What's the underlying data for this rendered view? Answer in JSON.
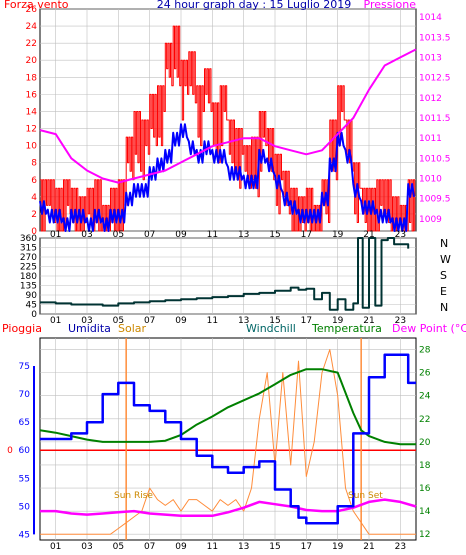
{
  "header": {
    "wind_title": "Forza vento",
    "main_title": "24 hour graph day : 15 Luglio 2019",
    "pressure_title": "Pressione"
  },
  "lower_labels": {
    "rain": "Pioggia",
    "humidity": "Umidita",
    "solar": "Solar",
    "windchill": "Windchill",
    "temperature": "Temperatura",
    "dewpoint": "Dew Point (°C)"
  },
  "direction_letters": [
    "N",
    "W",
    "S",
    "E",
    "N"
  ],
  "annotations": {
    "sunrise": "Sun Rise",
    "sunset": "Sun Set"
  },
  "colors": {
    "wind_gust": "#ff0000",
    "wind_avg": "#0000ff",
    "pressure": "#ff00ff",
    "wind_dir": "#003333",
    "humidity": "#0000ff",
    "solar": "#ff8c3a",
    "temperature": "#008000",
    "dewpoint": "#ff00ff",
    "rain": "#ff0000",
    "grid": "#c0c0c0"
  },
  "chart_data": [
    {
      "type": "line",
      "title": "24 hour graph day : 15 Luglio 2019",
      "xlabel": "",
      "x_ticks": [
        "01",
        "03",
        "05",
        "07",
        "09",
        "11",
        "13",
        "15",
        "17",
        "19",
        "21",
        "23"
      ],
      "x_range": [
        0,
        24
      ],
      "left_axis": {
        "label": "Forza vento",
        "ticks": [
          0,
          2,
          4,
          6,
          8,
          10,
          12,
          14,
          16,
          18,
          20,
          22,
          24,
          26
        ],
        "range": [
          0,
          26
        ]
      },
      "right_axis": {
        "label": "Pressione",
        "ticks": [
          "1009",
          "1009.5",
          "1010",
          "1010.5",
          "1011",
          "1011.5",
          "1012",
          "1012.5",
          "1013",
          "1013.5",
          "1014"
        ],
        "range": [
          1008.7,
          1014.2
        ]
      },
      "series": [
        {
          "name": "Forza vento",
          "axis": "left",
          "x": [
            0,
            0.5,
            1,
            1.5,
            2,
            2.5,
            3,
            3.5,
            4,
            4.5,
            5,
            5.5,
            6,
            6.5,
            7,
            7.5,
            8,
            8.5,
            9,
            9.5,
            10,
            10.5,
            11,
            11.5,
            12,
            12.5,
            13,
            13.5,
            14,
            14.5,
            15,
            15.5,
            16,
            16.5,
            17,
            17.5,
            18,
            18.5,
            19,
            19.5,
            20,
            20.5,
            21,
            21.5,
            22,
            22.5,
            23,
            23.5
          ],
          "values": [
            6,
            6,
            5,
            6,
            5,
            4,
            5,
            6,
            3,
            5,
            6,
            11,
            14,
            13,
            16,
            17,
            22,
            24,
            20,
            21,
            17,
            19,
            15,
            17,
            13,
            12,
            10,
            11,
            14,
            12,
            9,
            7,
            5,
            4,
            5,
            3,
            6,
            13,
            17,
            13,
            8,
            5,
            5,
            6,
            6,
            4,
            3,
            6
          ]
        },
        {
          "name": "",
          "axis": "left",
          "x": [
            0,
            0.5,
            1,
            1.5,
            2,
            2.5,
            3,
            3.5,
            4,
            4.5,
            5,
            5.5,
            6,
            6.5,
            7,
            7.5,
            8,
            8.5,
            9,
            9.5,
            10,
            10.5,
            11,
            11.5,
            12,
            12.5,
            13,
            13.5,
            14,
            14.5,
            15,
            15.5,
            16,
            16.5,
            17,
            17.5,
            18,
            18.5,
            19,
            19.5,
            20,
            20.5,
            21,
            21.5,
            22,
            22.5,
            23,
            23.5
          ],
          "values": [
            3,
            2,
            2,
            1,
            2,
            2,
            1,
            2,
            1,
            2,
            2,
            4,
            5,
            5,
            7,
            8,
            9,
            11,
            12,
            10,
            9,
            10,
            9,
            9,
            7,
            7,
            6,
            6,
            9,
            8,
            6,
            4,
            3,
            2,
            2,
            2,
            4,
            8,
            11,
            9,
            5,
            3,
            3,
            2,
            2,
            1,
            1,
            5
          ]
        },
        {
          "name": "Pressione",
          "axis": "right",
          "x": [
            0,
            1,
            2,
            3,
            4,
            5,
            6,
            7,
            8,
            9,
            10,
            11,
            12,
            13,
            14,
            15,
            16,
            17,
            18,
            19,
            20,
            21,
            22,
            23,
            24
          ],
          "values": [
            1011.2,
            1011.1,
            1010.5,
            1010.2,
            1010.0,
            1009.9,
            1010.0,
            1010.1,
            1010.2,
            1010.4,
            1010.6,
            1010.8,
            1010.9,
            1011.0,
            1011.0,
            1010.8,
            1010.7,
            1010.6,
            1010.7,
            1011.1,
            1011.5,
            1012.2,
            1012.8,
            1013.0,
            1013.2
          ]
        }
      ]
    },
    {
      "type": "line",
      "title": "",
      "x_ticks": [
        "01",
        "03",
        "05",
        "07",
        "09",
        "11",
        "13",
        "15",
        "17",
        "19",
        "21",
        "23"
      ],
      "x_range": [
        0,
        24
      ],
      "left_axis": {
        "ticks": [
          0,
          45,
          90,
          135,
          180,
          225,
          270,
          315,
          360
        ],
        "tick_labels": [
          "0",
          "45",
          "90",
          "135",
          "180",
          "225",
          "270",
          "315",
          "360"
        ],
        "range": [
          0,
          360
        ]
      },
      "right_axis": {
        "labels": [
          "N",
          "W",
          "S",
          "E",
          "N"
        ]
      },
      "series": [
        {
          "name": "",
          "x": [
            0,
            1,
            2,
            3,
            4,
            5,
            6,
            7,
            8,
            9,
            10,
            11,
            12,
            13,
            14,
            15,
            16,
            16.5,
            17,
            17.5,
            18,
            18.5,
            19,
            19.5,
            20,
            20.3,
            20.6,
            21,
            21.4,
            21.8,
            22.2,
            22.6,
            23,
            23.5
          ],
          "values": [
            55,
            50,
            45,
            45,
            40,
            50,
            55,
            60,
            65,
            70,
            75,
            80,
            85,
            95,
            100,
            110,
            125,
            115,
            120,
            70,
            100,
            20,
            70,
            20,
            50,
            360,
            30,
            360,
            40,
            350,
            360,
            330,
            330,
            310
          ]
        }
      ]
    },
    {
      "type": "line",
      "title": "",
      "x_ticks": [
        "01",
        "03",
        "05",
        "07",
        "09",
        "11",
        "13",
        "15",
        "17",
        "19",
        "21",
        "23"
      ],
      "x_range": [
        0,
        24
      ],
      "left_axis": {
        "label": "Umidita",
        "ticks": [
          45,
          50,
          55,
          60,
          65,
          70,
          75
        ],
        "range": [
          44,
          80
        ]
      },
      "right_axis": {
        "label": "Temperatura / Dew Point (°C)",
        "ticks": [
          12,
          14,
          16,
          18,
          20,
          22,
          24,
          26,
          28
        ],
        "range": [
          11.5,
          29
        ]
      },
      "rain_scale": {
        "label": "Pioggia",
        "ticks": [
          0
        ]
      },
      "series": [
        {
          "name": "Umidita",
          "axis": "left",
          "x": [
            0,
            1,
            2,
            3,
            4,
            5,
            6,
            7,
            8,
            9,
            10,
            11,
            12,
            13,
            14,
            15,
            16,
            16.5,
            17,
            18,
            19,
            20,
            21,
            22,
            23,
            23.5,
            24
          ],
          "values": [
            62,
            62,
            63,
            65,
            70,
            72,
            68,
            67,
            65,
            62,
            59,
            57,
            56,
            57,
            58,
            53,
            50,
            48,
            47,
            47,
            50,
            63,
            73,
            77,
            77,
            72,
            72
          ]
        },
        {
          "name": "Solar",
          "axis": "right",
          "x": [
            0,
            4.5,
            5,
            5.5,
            6,
            6.5,
            7,
            7.5,
            8,
            8.5,
            9,
            9.5,
            10,
            10.5,
            11,
            11.5,
            12,
            12.5,
            13,
            13.5,
            14,
            14.5,
            15,
            15.5,
            16,
            16.5,
            17,
            17.5,
            18,
            18.5,
            19,
            19.5,
            20,
            20.5,
            21,
            24
          ],
          "values": [
            12,
            12,
            12.5,
            13,
            13.5,
            14,
            16,
            15,
            14.5,
            15,
            14,
            15,
            15,
            14.5,
            14,
            15,
            14.5,
            15,
            14,
            16,
            22,
            26,
            18,
            26,
            18,
            27,
            17,
            20,
            26,
            28,
            24,
            16,
            14,
            13,
            12,
            12
          ]
        },
        {
          "name": "Temperatura",
          "axis": "right",
          "x": [
            0,
            1,
            2,
            3,
            4,
            5,
            6,
            7,
            8,
            9,
            10,
            11,
            12,
            13,
            14,
            15,
            16,
            17,
            18,
            19,
            20,
            20.5,
            21,
            22,
            23,
            24
          ],
          "values": [
            21.0,
            20.8,
            20.5,
            20.2,
            20.0,
            20.0,
            20.0,
            20.0,
            20.1,
            20.6,
            21.5,
            22.2,
            23.0,
            23.6,
            24.2,
            25.0,
            25.8,
            26.3,
            26.3,
            26.0,
            22.5,
            21.0,
            20.5,
            20.0,
            19.8,
            19.8
          ]
        },
        {
          "name": "Dew Point (°C)",
          "axis": "right",
          "x": [
            0,
            1,
            2,
            3,
            4,
            5,
            6,
            7,
            8,
            9,
            10,
            11,
            12,
            13,
            14,
            15,
            16,
            17,
            18,
            19,
            20,
            21,
            22,
            23,
            24
          ],
          "values": [
            14,
            14,
            13.8,
            13.7,
            13.8,
            13.9,
            14.0,
            13.8,
            13.7,
            13.6,
            13.6,
            13.6,
            13.9,
            14.3,
            14.8,
            14.6,
            14.4,
            14.1,
            14.0,
            14.0,
            14.3,
            14.8,
            15.0,
            14.8,
            14.4
          ]
        },
        {
          "name": "Pioggia",
          "axis": "rain",
          "x": [
            0,
            24
          ],
          "values": [
            0,
            0
          ]
        }
      ],
      "markers": {
        "sunrise_hour": 5.5,
        "sunset_hour": 20.5
      }
    }
  ]
}
